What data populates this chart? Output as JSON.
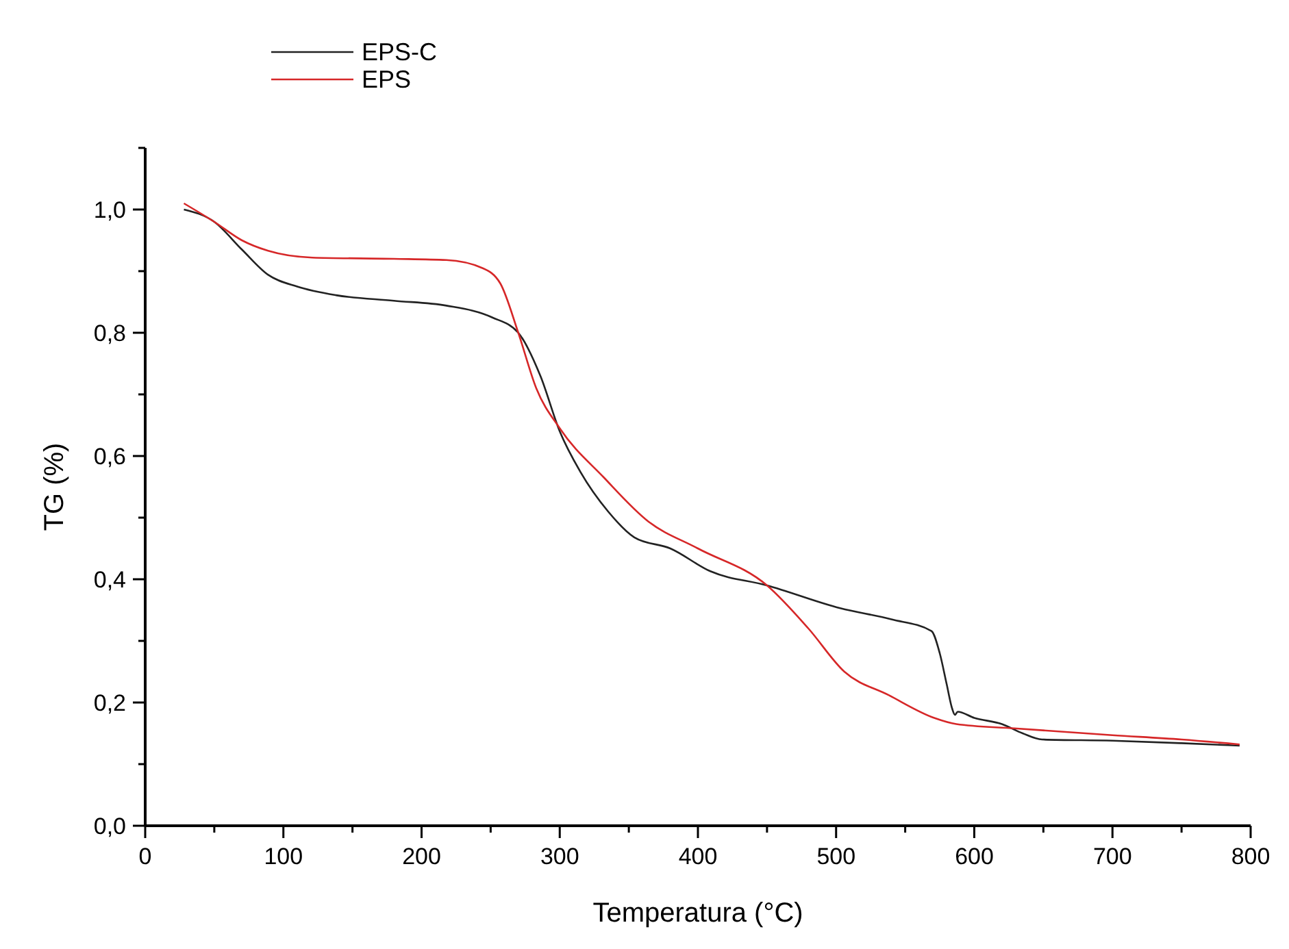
{
  "chart_data": {
    "type": "line",
    "xlabel": "Temperatura (°C)",
    "ylabel": "TG (%)",
    "legend": "top left",
    "grid": false,
    "xlim": [
      0,
      800
    ],
    "ylim": [
      0,
      1.1
    ],
    "xticks": [
      0,
      {
        "value": 50,
        "label": null
      },
      100,
      {
        "value": 150,
        "label": null
      },
      200,
      {
        "value": 250,
        "label": null
      },
      300,
      {
        "value": 350,
        "label": null
      },
      400,
      {
        "value": 450,
        "label": null
      },
      500,
      {
        "value": 550,
        "label": null
      },
      600,
      {
        "value": 650,
        "label": null
      },
      700,
      {
        "value": 750,
        "label": null
      },
      800
    ],
    "yticks": [
      {
        "value": 0,
        "label": "0,0"
      },
      {
        "value": 0.1,
        "label": null
      },
      {
        "value": 0.2,
        "label": "0,2"
      },
      {
        "value": 0.3,
        "label": null
      },
      {
        "value": 0.4,
        "label": "0,4"
      },
      {
        "value": 0.5,
        "label": null
      },
      {
        "value": 0.6,
        "label": "0,6"
      },
      {
        "value": 0.7,
        "label": null
      },
      {
        "value": 0.8,
        "label": "0,8"
      },
      {
        "value": 0.9,
        "label": null
      },
      {
        "value": 1.0,
        "label": "1,0"
      },
      {
        "value": 1.1,
        "label": null
      }
    ],
    "series": [
      {
        "name": "EPS-C",
        "color": "#222222",
        "x": [
          28,
          50,
          70,
          89,
          110,
          138,
          180,
          218,
          251,
          270,
          286,
          300,
          315,
          335,
          354,
          380,
          409,
          450,
          503,
          540,
          569,
          575,
          580,
          584,
          586,
          588,
          600,
          620,
          635,
          649,
          700,
          750,
          792
        ],
        "values": [
          1.0,
          0.98,
          0.935,
          0.894,
          0.875,
          0.861,
          0.852,
          0.844,
          0.825,
          0.8,
          0.73,
          0.64,
          0.574,
          0.51,
          0.468,
          0.45,
          0.413,
          0.39,
          0.353,
          0.335,
          0.316,
          0.28,
          0.23,
          0.19,
          0.18,
          0.185,
          0.175,
          0.165,
          0.15,
          0.14,
          0.138,
          0.134,
          0.13
        ]
      },
      {
        "name": "EPS",
        "color": "#d62728",
        "x": [
          28,
          50,
          70,
          89,
          121,
          180,
          218,
          244,
          257,
          270,
          283,
          300,
          332,
          364,
          400,
          450,
          480,
          506,
          538,
          571,
          587,
          629,
          700,
          750,
          792
        ],
        "values": [
          1.01,
          0.98,
          0.95,
          0.933,
          0.922,
          0.92,
          0.918,
          0.905,
          0.88,
          0.8,
          0.71,
          0.645,
          0.565,
          0.494,
          0.45,
          0.39,
          0.32,
          0.25,
          0.212,
          0.175,
          0.165,
          0.158,
          0.147,
          0.14,
          0.132
        ]
      }
    ]
  }
}
